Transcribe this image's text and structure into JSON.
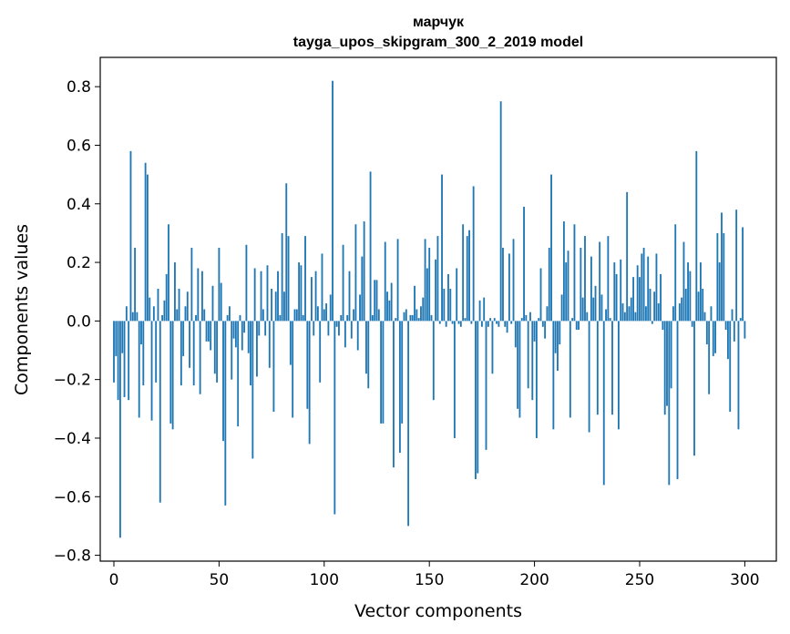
{
  "chart_data": {
    "type": "bar",
    "title": [
      "марчук",
      "tayga_upos_skipgram_300_2_2019 model"
    ],
    "xlabel": "Vector components",
    "ylabel": "Components values",
    "xlim": [
      -6.5,
      315
    ],
    "ylim": [
      -0.82,
      0.9
    ],
    "xticks": [
      0,
      50,
      100,
      150,
      200,
      250,
      300
    ],
    "yticks": [
      -0.8,
      -0.6,
      -0.4,
      -0.2,
      0.0,
      0.2,
      0.4,
      0.6,
      0.8
    ],
    "ytick_labels": [
      "−0.8",
      "−0.6",
      "−0.4",
      "−0.2",
      "0.0",
      "0.2",
      "0.4",
      "0.6",
      "0.8"
    ],
    "bar_color": "#1f77b4",
    "values": [
      -0.21,
      -0.12,
      -0.27,
      -0.74,
      -0.11,
      -0.26,
      0.05,
      -0.27,
      0.58,
      0.03,
      0.25,
      0.03,
      -0.33,
      -0.08,
      -0.22,
      0.54,
      0.5,
      0.08,
      -0.34,
      0.05,
      -0.21,
      0.11,
      -0.62,
      0.02,
      0.07,
      0.16,
      0.33,
      -0.35,
      -0.37,
      0.2,
      0.04,
      0.11,
      -0.22,
      -0.12,
      0.05,
      0.1,
      -0.16,
      0.25,
      -0.22,
      0.02,
      0.18,
      -0.25,
      0.17,
      0.04,
      -0.07,
      -0.07,
      -0.1,
      0.12,
      -0.18,
      -0.21,
      0.25,
      0.13,
      -0.41,
      -0.63,
      0.02,
      0.05,
      -0.2,
      -0.06,
      -0.09,
      -0.36,
      0.02,
      -0.1,
      -0.04,
      0.26,
      -0.11,
      -0.22,
      -0.47,
      0.18,
      -0.19,
      -0.05,
      0.17,
      0.04,
      -0.05,
      0.19,
      -0.16,
      0.11,
      -0.31,
      0.1,
      0.17,
      0.02,
      0.3,
      0.1,
      0.47,
      0.29,
      -0.15,
      -0.33,
      0.04,
      0.04,
      0.2,
      0.19,
      0.02,
      0.29,
      -0.3,
      -0.42,
      0.15,
      -0.05,
      0.17,
      0.05,
      -0.21,
      0.23,
      0.04,
      0.06,
      -0.05,
      0.09,
      0.82,
      -0.66,
      -0.02,
      -0.05,
      0.02,
      0.26,
      -0.09,
      0.02,
      0.17,
      -0.06,
      0.04,
      0.33,
      -0.1,
      0.09,
      0.22,
      0.34,
      -0.18,
      -0.23,
      0.51,
      0.02,
      0.14,
      0.14,
      0.04,
      -0.35,
      -0.35,
      0.27,
      0.1,
      0.07,
      0.13,
      -0.5,
      0.01,
      0.28,
      -0.45,
      -0.35,
      0.03,
      0.04,
      -0.7,
      0.02,
      0.02,
      0.12,
      0.04,
      0.01,
      0.05,
      0.08,
      0.28,
      0.18,
      0.25,
      0.02,
      -0.27,
      0.21,
      0.29,
      -0.01,
      0.5,
      0.11,
      -0.02,
      0.16,
      0.11,
      -0.01,
      -0.4,
      0.18,
      -0.01,
      -0.02,
      0.33,
      0.01,
      0.29,
      0.31,
      -0.01,
      0.46,
      -0.54,
      -0.52,
      0.07,
      -0.02,
      0.08,
      -0.44,
      -0.02,
      0.01,
      -0.18,
      0.01,
      -0.01,
      -0.02,
      0.75,
      0.25,
      -0.02,
      -0.04,
      0.23,
      -0.01,
      0.28,
      -0.09,
      -0.3,
      -0.33,
      0.01,
      0.39,
      0.02,
      -0.23,
      0.03,
      -0.27,
      -0.07,
      -0.4,
      0.01,
      0.18,
      -0.02,
      -0.06,
      0.05,
      0.25,
      0.5,
      -0.37,
      -0.11,
      -0.17,
      -0.08,
      0.09,
      0.34,
      0.2,
      0.24,
      -0.33,
      0.01,
      0.33,
      -0.03,
      -0.03,
      0.25,
      0.08,
      0.29,
      0.03,
      -0.38,
      0.22,
      0.08,
      0.12,
      -0.32,
      0.27,
      0.09,
      -0.56,
      0.04,
      0.29,
      0.01,
      -0.32,
      0.2,
      0.16,
      -0.37,
      0.21,
      0.06,
      0.03,
      0.44,
      0.05,
      0.08,
      0.15,
      0.03,
      0.19,
      0.15,
      0.23,
      0.25,
      0.05,
      0.22,
      0.11,
      -0.01,
      0.1,
      0.23,
      0.06,
      0.16,
      -0.03,
      -0.32,
      -0.29,
      -0.56,
      -0.23,
      0.05,
      0.33,
      -0.54,
      0.06,
      0.08,
      0.27,
      0.11,
      0.2,
      0.17,
      -0.02,
      -0.46,
      0.58,
      0.1,
      0.2,
      0.11,
      0.03,
      -0.08,
      -0.25,
      0.05,
      -0.12,
      -0.11,
      0.3,
      0.2,
      0.37,
      0.3,
      -0.03,
      -0.13,
      -0.31,
      0.04,
      -0.07,
      0.38,
      -0.37,
      0.01,
      0.32,
      -0.06
    ]
  }
}
